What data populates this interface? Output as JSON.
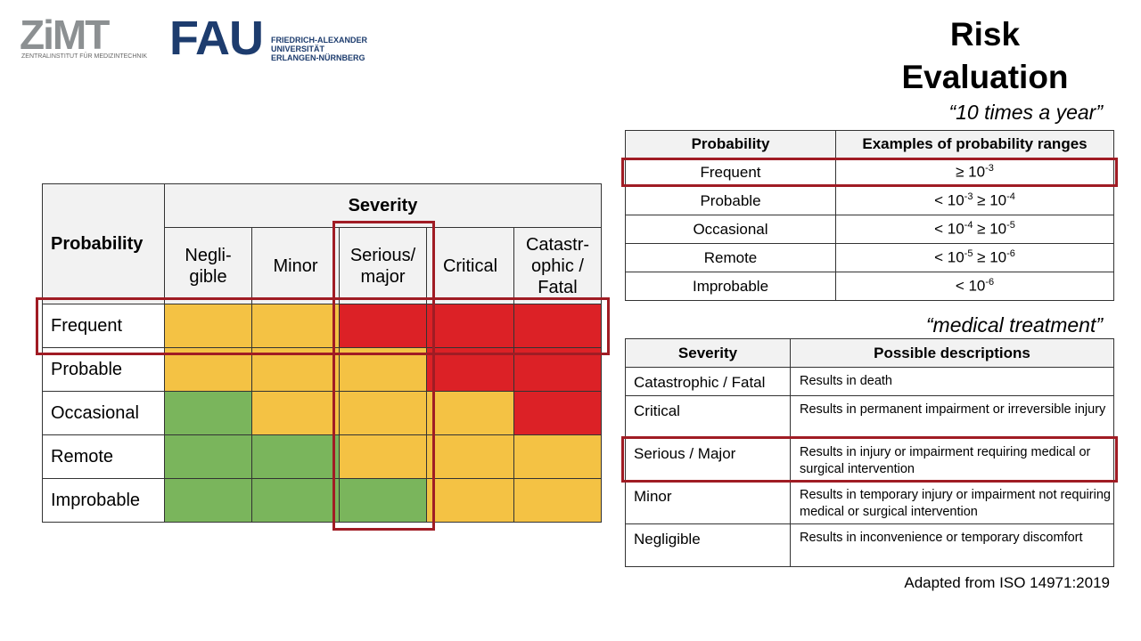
{
  "logos": {
    "zimt": "ZiMT",
    "zimt_subtitle": "ZENTRALINSTITUT FÜR MEDIZINTECHNIK",
    "fau": "FAU",
    "fau_lines": [
      "FRIEDRICH-ALEXANDER",
      "UNIVERSITÄT",
      "ERLANGEN-NÜRNBERG"
    ]
  },
  "header": {
    "title": "Risk Evaluation"
  },
  "matrix": {
    "probability_header": "Probability",
    "severity_header": "Severity",
    "columns": [
      "Negli-gible",
      "Minor",
      "Serious/ major",
      "Critical",
      "Catastr-ophic / Fatal"
    ],
    "colors": {
      "green": "#7ab55c",
      "yellow": "#f4c244",
      "red": "#dc2126"
    },
    "rows": [
      {
        "label": "Frequent",
        "levels": [
          "yellow",
          "yellow",
          "red",
          "red",
          "red"
        ]
      },
      {
        "label": "Probable",
        "levels": [
          "yellow",
          "yellow",
          "yellow",
          "red",
          "red"
        ]
      },
      {
        "label": "Occasional",
        "levels": [
          "green",
          "yellow",
          "yellow",
          "yellow",
          "red"
        ]
      },
      {
        "label": "Remote",
        "levels": [
          "green",
          "green",
          "yellow",
          "yellow",
          "yellow"
        ]
      },
      {
        "label": "Improbable",
        "levels": [
          "green",
          "green",
          "green",
          "yellow",
          "yellow"
        ]
      }
    ]
  },
  "probability_note": "“10 times a year”",
  "probability_table": {
    "headers": [
      "Probability",
      "Examples of probability ranges"
    ],
    "rows": [
      [
        "Frequent",
        [
          "≥ 10",
          "-3"
        ]
      ],
      [
        "Probable",
        [
          "< 10",
          "-3",
          " ≥ 10",
          "-4"
        ]
      ],
      [
        "Occasional",
        [
          "< 10",
          "-4",
          " ≥ 10",
          "-5"
        ]
      ],
      [
        "Remote",
        [
          "< 10",
          "-5",
          " ≥ 10",
          "-6"
        ]
      ],
      [
        "Improbable",
        [
          "< 10",
          "-6"
        ]
      ]
    ]
  },
  "severity_note": "“medical treatment”",
  "severity_table": {
    "headers": [
      "Severity",
      "Possible descriptions"
    ],
    "rows": [
      [
        "Catastrophic / Fatal",
        "Results in death"
      ],
      [
        "Critical",
        "Results in permanent impairment or irreversible injury"
      ],
      [
        "Serious / Major",
        "Results in injury or impairment requiring medical or surgical intervention"
      ],
      [
        "Minor",
        "Results in temporary injury or impairment not requiring medical or surgical intervention"
      ],
      [
        "Negligible",
        "Results in inconvenience or temporary discomfort"
      ]
    ]
  },
  "footer": "Adapted from ISO 14971:2019"
}
